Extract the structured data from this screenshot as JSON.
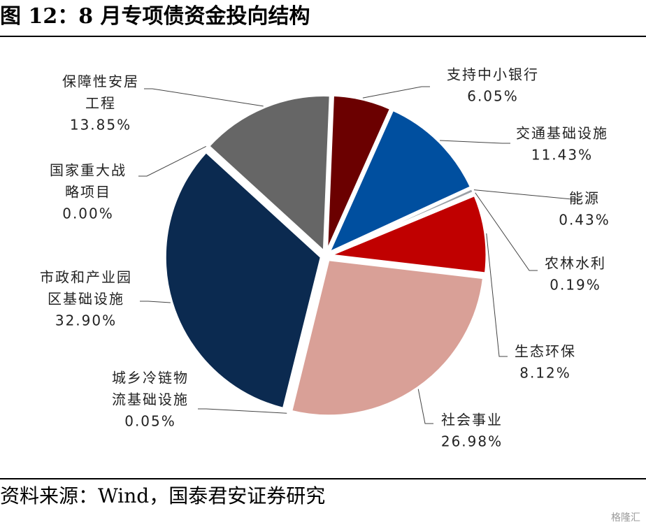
{
  "title": "图 12：8 月专项债资金投向结构",
  "source": "资料来源：Wind，国泰君安证券研究",
  "watermark": "格隆汇",
  "chart_data": {
    "type": "pie",
    "title": "",
    "slices": [
      {
        "label_lines": [
          "支持中小银行"
        ],
        "value": 6.05,
        "value_label": "6.05%",
        "color": "#6b0000"
      },
      {
        "label_lines": [
          "交通基础设施"
        ],
        "value": 11.43,
        "value_label": "11.43%",
        "color": "#004f9f"
      },
      {
        "label_lines": [
          "能源"
        ],
        "value": 0.43,
        "value_label": "0.43%",
        "color": "#9aa0a6"
      },
      {
        "label_lines": [
          "农林水利"
        ],
        "value": 0.19,
        "value_label": "0.19%",
        "color": "#7a8da8"
      },
      {
        "label_lines": [
          "生态环保"
        ],
        "value": 8.12,
        "value_label": "8.12%",
        "color": "#c00000"
      },
      {
        "label_lines": [
          "社会事业"
        ],
        "value": 26.98,
        "value_label": "26.98%",
        "color": "#d9a097"
      },
      {
        "label_lines": [
          "城乡冷链物",
          "流基础设施"
        ],
        "value": 0.05,
        "value_label": "0.05%",
        "color": "#a0a0a0"
      },
      {
        "label_lines": [
          "市政和产业园",
          "区基础设施"
        ],
        "value": 32.9,
        "value_label": "32.90%",
        "color": "#0b2a50"
      },
      {
        "label_lines": [
          "国家重大战",
          "略项目"
        ],
        "value": 0.0,
        "value_label": "0.00%",
        "color": "#b0b0b0"
      },
      {
        "label_lines": [
          "保障性安居",
          "工程"
        ],
        "value": 13.85,
        "value_label": "13.85%",
        "color": "#666666"
      }
    ]
  }
}
